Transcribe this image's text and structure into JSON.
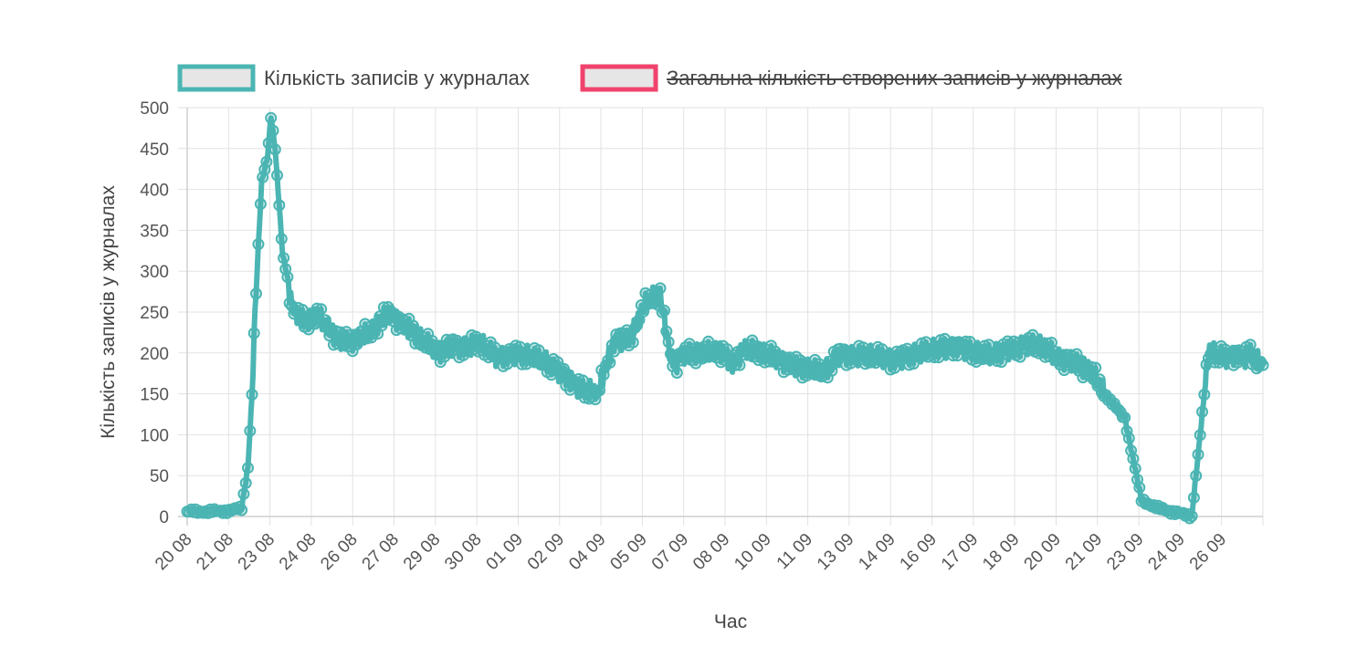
{
  "chart_data": {
    "type": "line",
    "xlabel": "Час",
    "ylabel": "Кількість записів у журналах",
    "ylim": [
      0,
      500
    ],
    "yticks": [
      "0",
      "50",
      "100",
      "150",
      "200",
      "250",
      "300",
      "350",
      "400",
      "450",
      "500"
    ],
    "xticks": [
      "20 08",
      "21 08",
      "23 08",
      "24 08",
      "26 08",
      "27 08",
      "29 08",
      "30 08",
      "01 09",
      "02 09",
      "04 09",
      "05 09",
      "07 09",
      "08 09",
      "10 09",
      "11 09",
      "13 09",
      "14 09",
      "16 09",
      "17 09",
      "18 09",
      "20 09",
      "21 09",
      "23 09",
      "24 09",
      "26 09"
    ],
    "grid": true,
    "legend_position": "top",
    "series": [
      {
        "name": "Кількість записів у журналах",
        "color": "#4bb5b3",
        "hidden": false,
        "x": [
          0,
          0.5,
          1,
          1.3,
          1.45,
          1.55,
          1.62,
          1.7,
          1.78,
          1.85,
          1.92,
          2.0,
          2.1,
          2.2,
          2.28,
          2.35,
          2.42,
          2.5,
          2.6,
          2.75,
          2.9,
          3.1,
          3.3,
          3.6,
          4.0,
          4.4,
          4.8,
          5.2,
          5.6,
          6.0,
          6.3,
          6.6,
          7.0,
          7.4,
          7.8,
          8.2,
          8.6,
          9.0,
          9.4,
          9.8,
          10.2,
          10.6,
          11.0,
          11.3,
          11.55,
          11.7,
          11.75,
          11.9,
          12.2,
          12.5,
          12.8,
          13.0,
          13.05,
          13.3,
          13.6,
          14.0,
          14.4,
          14.8,
          15.2,
          15.6,
          16.0,
          16.4,
          16.8,
          17.2,
          17.6,
          18.0,
          18.4,
          18.8,
          19.2,
          19.6,
          20.0,
          20.4,
          20.8,
          21.2,
          21.6,
          22.0,
          22.4,
          22.8,
          23.2,
          23.6,
          24.0,
          24.4,
          24.8,
          25.1,
          25.25,
          25.4,
          25.55,
          25.7
        ],
        "values": [
          6,
          6,
          7,
          10,
          60,
          150,
          250,
          330,
          410,
          425,
          440,
          490,
          450,
          380,
          320,
          305,
          285,
          255,
          250,
          240,
          238,
          245,
          235,
          218,
          215,
          225,
          250,
          235,
          215,
          200,
          210,
          207,
          210,
          195,
          200,
          195,
          187,
          175,
          155,
          150,
          215,
          220,
          265,
          270,
          195,
          190,
          195,
          200,
          198,
          200,
          202,
          188,
          190,
          205,
          200,
          195,
          188,
          180,
          175,
          200,
          197,
          195,
          192,
          197,
          200,
          205,
          210,
          200,
          196,
          205,
          210,
          207,
          195,
          190,
          175,
          145,
          120,
          20,
          10,
          5,
          0,
          200,
          195,
          200,
          195,
          200,
          190,
          185
        ],
        "values_note": ""
      },
      {
        "name": "Загальна кількість створених записів у журналах",
        "color": "#f0436c",
        "hidden": true
      }
    ]
  }
}
